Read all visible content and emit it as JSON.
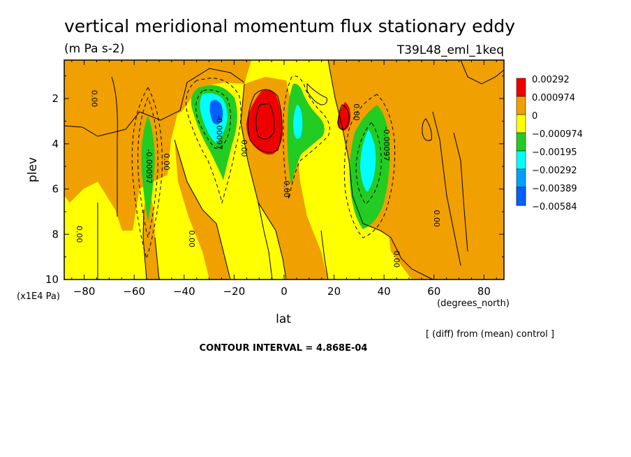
{
  "chart_data": {
    "type": "heatmap",
    "title": "vertical meridional momentum flux stationary eddy",
    "units": "(m Pa s-2)",
    "experiment": "T39L48_eml_1keq",
    "xlabel": "lat",
    "x_units": "(degrees_north)",
    "ylabel": "plev",
    "y_units": "(x1E4 Pa)",
    "xlim": [
      -88,
      88
    ],
    "ylim": [
      0.3,
      10
    ],
    "y_inverted": true,
    "x_ticks": [
      -80,
      -60,
      -40,
      -20,
      0,
      20,
      40,
      60,
      80
    ],
    "x_tick_labels": [
      "−80",
      "−60",
      "−40",
      "−20",
      "0",
      "20",
      "40",
      "60",
      "80"
    ],
    "y_ticks": [
      2,
      4,
      6,
      8,
      10
    ],
    "y_tick_labels": [
      "2",
      "4",
      "6",
      "8",
      "10"
    ],
    "contour_interval_text": "CONTOUR INTERVAL = 4.868E-04",
    "note": "[ (diff) from (mean) control ]",
    "legend": {
      "levels": [
        {
          "label": "0.00292",
          "color": "#ee0000"
        },
        {
          "label": "0.000974",
          "color": "#f0a000"
        },
        {
          "label": "0",
          "color": "#ffff00"
        },
        {
          "label": "−0.000974",
          "color": "#22cc22"
        },
        {
          "label": "−0.00195",
          "color": "#00ffff"
        },
        {
          "label": "−0.00292",
          "color": "#00a0ff"
        },
        {
          "label": "−0.00389",
          "color": "#0060ff"
        },
        {
          "label": "−0.00584",
          "color": "#ffffff"
        }
      ]
    },
    "contour_labels": [
      {
        "text": "0.00",
        "lat": -77,
        "plev": 2.0
      },
      {
        "text": "-0.00097",
        "lat": -55,
        "plev": 5.0
      },
      {
        "text": "0.00",
        "lat": -48,
        "plev": 4.8
      },
      {
        "text": "-0.00097",
        "lat": -27,
        "plev": 3.5
      },
      {
        "text": "0.00",
        "lat": -17,
        "plev": 4.2
      },
      {
        "text": "0.00",
        "lat": 0,
        "plev": 6.0
      },
      {
        "text": "0.00",
        "lat": 28,
        "plev": 2.6
      },
      {
        "text": "-0.00097",
        "lat": 40,
        "plev": 4.0
      },
      {
        "text": "0.00",
        "lat": -83,
        "plev": 8.0
      },
      {
        "text": "0.00",
        "lat": -38,
        "plev": 8.2
      },
      {
        "text": "0.00",
        "lat": 44,
        "plev": 9.1
      },
      {
        "text": "0.00",
        "lat": 60,
        "plev": 7.3
      }
    ],
    "regions": [
      {
        "level": "pos_low",
        "lat": [
          -88,
          -20
        ],
        "plev": [
          0.3,
          3
        ],
        "desc": "orange band upper left"
      },
      {
        "level": "pos_low",
        "lat": [
          40,
          88
        ],
        "plev": [
          0.3,
          10
        ],
        "desc": "orange region right"
      },
      {
        "level": "neg_low",
        "lat": [
          -58,
          -53
        ],
        "plev": [
          2.8,
          7.5
        ]
      },
      {
        "level": "neg_low",
        "lat": [
          -37,
          -22
        ],
        "plev": [
          1.5,
          5.8
        ]
      },
      {
        "level": "neg_mid",
        "lat": [
          -33,
          -25
        ],
        "plev": [
          1.7,
          3.8
        ]
      },
      {
        "level": "neg_high",
        "lat": [
          -29,
          -25
        ],
        "plev": [
          2.2,
          3.0
        ]
      },
      {
        "level": "pos_high",
        "lat": [
          -14,
          -1
        ],
        "plev": [
          1.7,
          4.5
        ]
      },
      {
        "level": "neg_low",
        "lat": [
          2,
          17
        ],
        "plev": [
          1.5,
          6.0
        ]
      },
      {
        "level": "neg_mid",
        "lat": [
          4,
          8
        ],
        "plev": [
          2.5,
          3.8
        ]
      },
      {
        "level": "pos_high",
        "lat": [
          22,
          27
        ],
        "plev": [
          2.0,
          3.2
        ]
      },
      {
        "level": "neg_low",
        "lat": [
          26,
          47
        ],
        "plev": [
          2.2,
          7.8
        ]
      },
      {
        "level": "neg_mid",
        "lat": [
          33,
          38
        ],
        "plev": [
          3.5,
          5.5
        ]
      }
    ]
  }
}
